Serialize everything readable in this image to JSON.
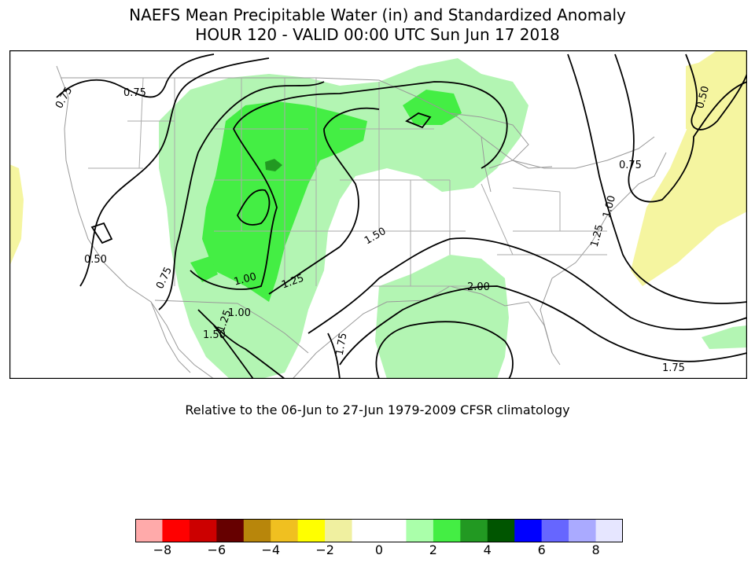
{
  "title_line1": "NAEFS Mean Precipitable Water (in) and Standardized Anomaly",
  "title_line2": "HOUR 120 - VALID 00:00 UTC Sun Jun 17 2018",
  "subtitle": "Relative to the 06-Jun to 27-Jun 1979-2009 CFSR climatology",
  "contour_labels": [
    "0.75",
    "0.75",
    "0.50",
    "0.75",
    "0.75",
    "1.00",
    "1.25",
    "1.50",
    "2.00",
    "1.25",
    "1.00",
    "0.50",
    "1.00",
    "1.25",
    "1.50",
    "1.75",
    "1.75"
  ],
  "colorbar": {
    "colors": [
      "#ffaaaa",
      "#ff0000",
      "#cc0000",
      "#660000",
      "#b8860b",
      "#f0c020",
      "#ffff00",
      "#f0f0a0",
      "#ffffff",
      "#ffffff",
      "#aaffaa",
      "#44ee44",
      "#229922",
      "#005500",
      "#0000ff",
      "#6666ff",
      "#aaaaff",
      "#e6e6ff"
    ],
    "ticks": [
      "−8",
      "−6",
      "−4",
      "−2",
      "0",
      "2",
      "4",
      "6",
      "8"
    ]
  },
  "colors": {
    "anom_light_green": "#b3f5b3",
    "anom_green": "#44ee44",
    "anom_dark_green": "#229922",
    "anom_pale_yellow": "#f5f5a0"
  }
}
